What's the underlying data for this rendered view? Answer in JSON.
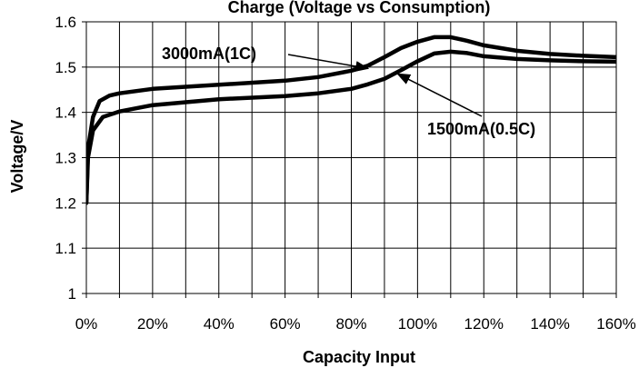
{
  "chart_data": {
    "type": "line",
    "title": "Charge (Voltage vs Consumption)",
    "xlabel": "Capacity Input",
    "ylabel": "Voltage/V",
    "xlim": [
      0,
      1.6
    ],
    "ylim": [
      1.0,
      1.6
    ],
    "x_ticks": [
      0,
      0.2,
      0.4,
      0.6,
      0.8,
      1.0,
      1.2,
      1.4,
      1.6
    ],
    "x_tick_labels": [
      "0%",
      "20%",
      "40%",
      "60%",
      "80%",
      "100%",
      "120%",
      "140%",
      "160%"
    ],
    "y_ticks": [
      1.0,
      1.1,
      1.2,
      1.3,
      1.4,
      1.5,
      1.6
    ],
    "y_tick_labels": [
      "1",
      "1.1",
      "1.2",
      "1.3",
      "1.4",
      "1.5",
      "1.6"
    ],
    "grid": true,
    "x_minor_step": 0.1,
    "series": [
      {
        "name": "3000mA(1C)",
        "color": "#000000",
        "points": [
          [
            0.0,
            1.2
          ],
          [
            0.005,
            1.32
          ],
          [
            0.02,
            1.39
          ],
          [
            0.04,
            1.425
          ],
          [
            0.07,
            1.437
          ],
          [
            0.1,
            1.442
          ],
          [
            0.2,
            1.452
          ],
          [
            0.4,
            1.461
          ],
          [
            0.6,
            1.47
          ],
          [
            0.7,
            1.478
          ],
          [
            0.8,
            1.492
          ],
          [
            0.85,
            1.503
          ],
          [
            0.9,
            1.522
          ],
          [
            0.95,
            1.542
          ],
          [
            1.0,
            1.556
          ],
          [
            1.05,
            1.566
          ],
          [
            1.1,
            1.566
          ],
          [
            1.15,
            1.558
          ],
          [
            1.2,
            1.548
          ],
          [
            1.3,
            1.536
          ],
          [
            1.4,
            1.529
          ],
          [
            1.5,
            1.525
          ],
          [
            1.6,
            1.522
          ]
        ]
      },
      {
        "name": "1500mA(0.5C)",
        "color": "#000000",
        "points": [
          [
            0.0,
            1.2
          ],
          [
            0.005,
            1.3
          ],
          [
            0.02,
            1.36
          ],
          [
            0.05,
            1.39
          ],
          [
            0.1,
            1.402
          ],
          [
            0.2,
            1.416
          ],
          [
            0.4,
            1.429
          ],
          [
            0.6,
            1.436
          ],
          [
            0.7,
            1.442
          ],
          [
            0.8,
            1.452
          ],
          [
            0.85,
            1.462
          ],
          [
            0.9,
            1.474
          ],
          [
            0.95,
            1.493
          ],
          [
            1.0,
            1.513
          ],
          [
            1.05,
            1.53
          ],
          [
            1.1,
            1.534
          ],
          [
            1.15,
            1.531
          ],
          [
            1.2,
            1.524
          ],
          [
            1.3,
            1.518
          ],
          [
            1.4,
            1.515
          ],
          [
            1.5,
            1.513
          ],
          [
            1.6,
            1.512
          ]
        ]
      }
    ],
    "annotations": [
      {
        "text": "3000mA(1C)",
        "series": "3000mA(1C)",
        "arrow_to": [
          0.85,
          1.497
        ]
      },
      {
        "text": "1500mA(0.5C)",
        "series": "1500mA(0.5C)",
        "arrow_to": [
          0.94,
          1.485
        ]
      }
    ]
  }
}
